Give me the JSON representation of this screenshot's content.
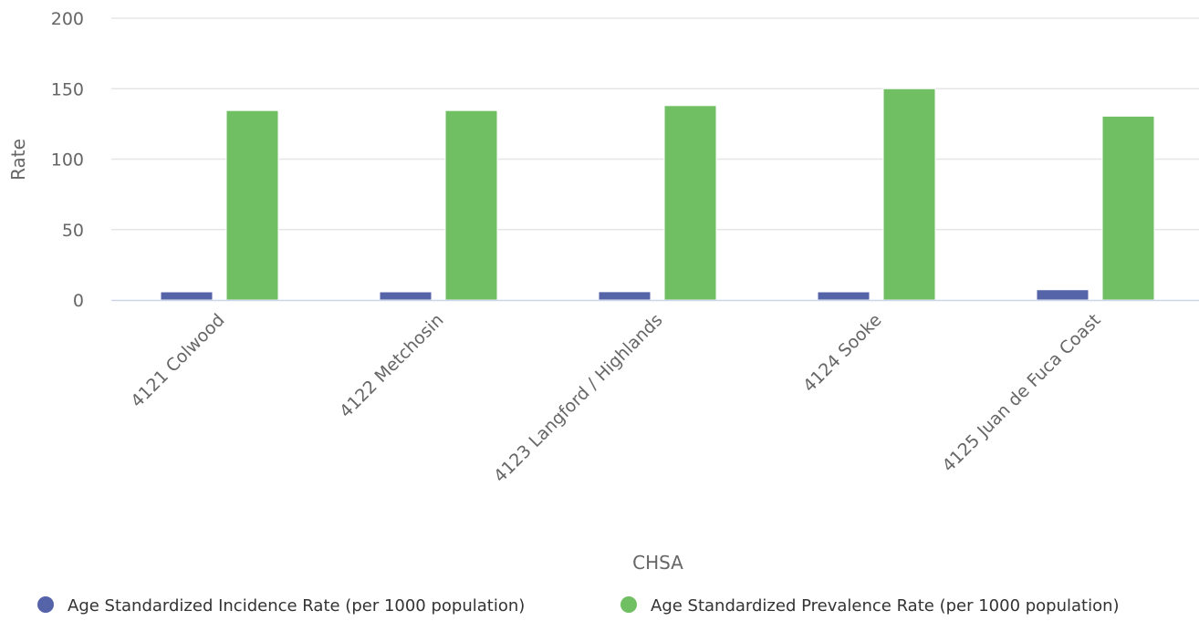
{
  "chart_data": {
    "type": "bar",
    "title": "",
    "xlabel": "CHSA",
    "ylabel": "Rate",
    "ylim": [
      0,
      200
    ],
    "yticks": [
      0,
      50,
      100,
      150,
      200
    ],
    "grid": true,
    "legend_position": "bottom",
    "categories": [
      "4121 Colwood",
      "4122 Metchosin",
      "4123 Langford / Highlands",
      "4124 Sooke",
      "4125 Juan de Fuca Coast"
    ],
    "series": [
      {
        "name": "Age Standardized Incidence Rate (per 1000 population)",
        "color": "#5563a9",
        "values": [
          5.8,
          5.8,
          5.9,
          5.8,
          7.3
        ]
      },
      {
        "name": "Age Standardized Prevalence Rate (per 1000 population)",
        "color": "#71bf63",
        "values": [
          134.5,
          134.5,
          138,
          150,
          130.5
        ]
      }
    ]
  }
}
